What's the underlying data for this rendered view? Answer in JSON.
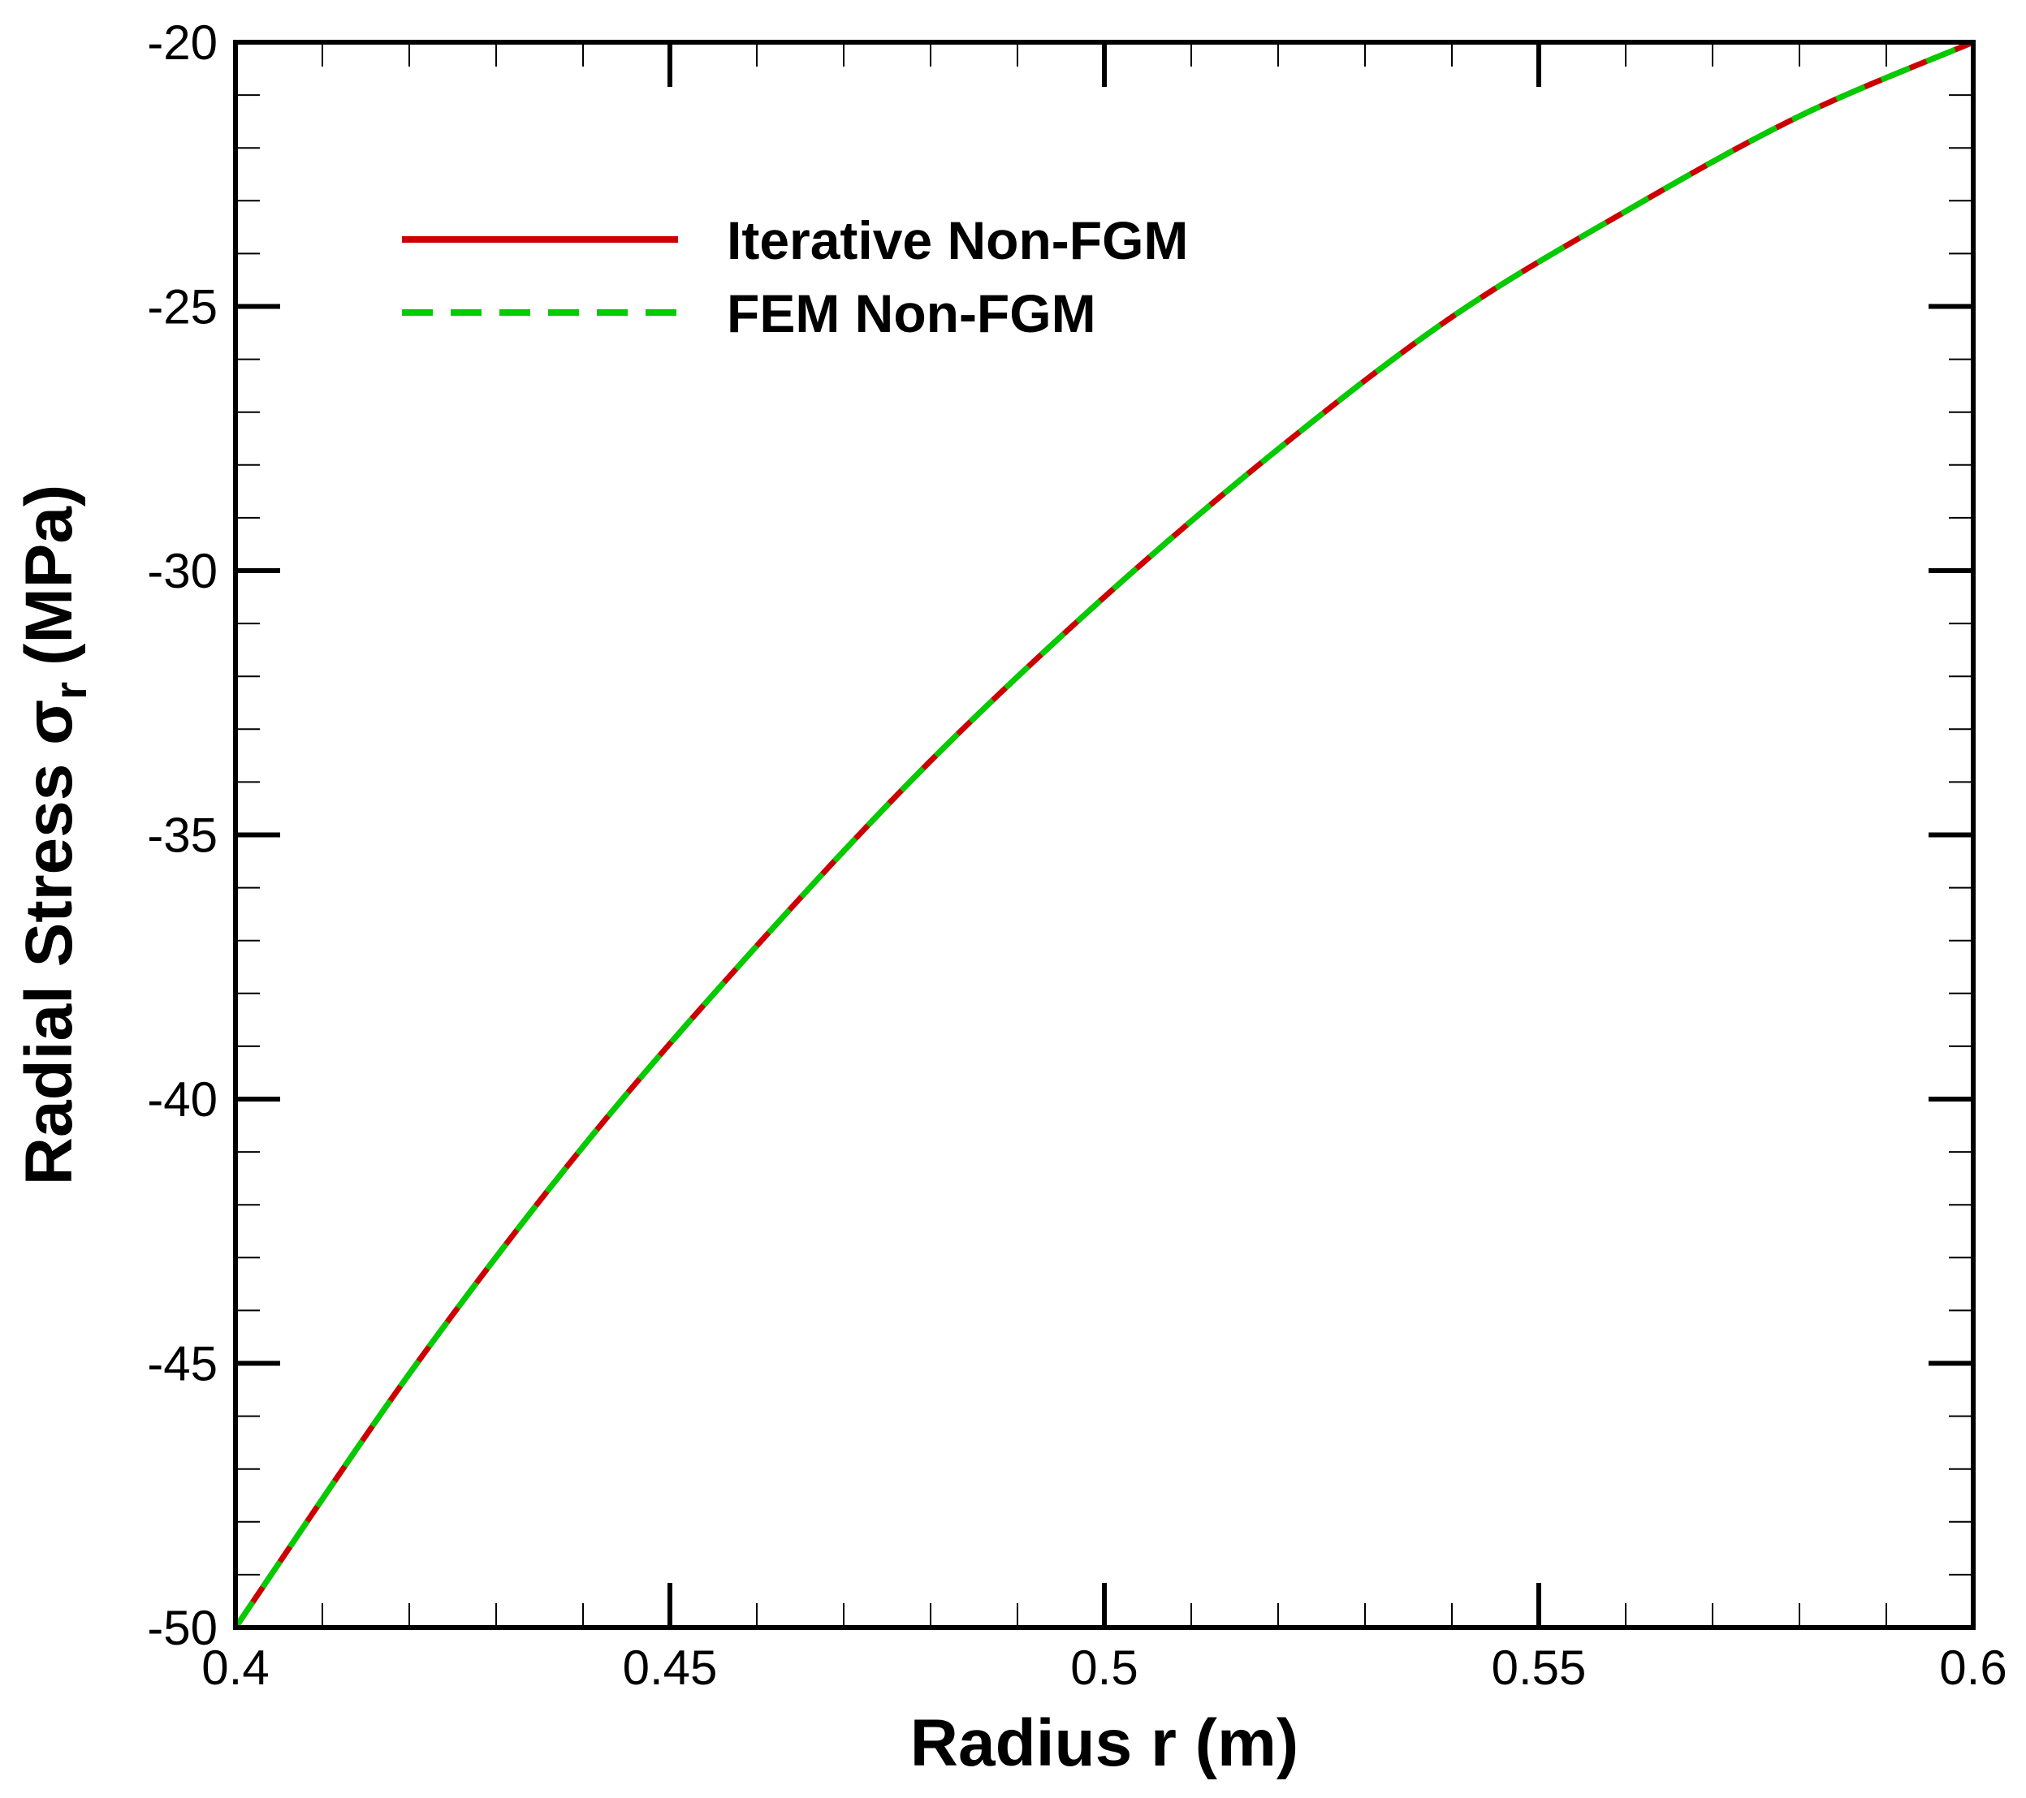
{
  "chart_data": {
    "type": "line",
    "xlabel": "Radius r (m)",
    "ylabel_main": "Radial Stress σ",
    "ylabel_sub": "r",
    "ylabel_unit": "(MPa)",
    "xlim": [
      0.4,
      0.6
    ],
    "ylim": [
      -50,
      -20
    ],
    "xticks": [
      0.4,
      0.45,
      0.5,
      0.55,
      0.6
    ],
    "xtick_labels": [
      "0.4",
      "0.45",
      "0.5",
      "0.55",
      "0.6"
    ],
    "yticks": [
      -50,
      -45,
      -40,
      -35,
      -30,
      -25,
      -20
    ],
    "ytick_labels": [
      "-50",
      "-45",
      "-40",
      "-35",
      "-30",
      "-25",
      "-20"
    ],
    "x_minor_step": 0.01,
    "y_minor_step": 1,
    "grid": false,
    "legend_position": "top-left",
    "x": [
      0.4,
      0.42,
      0.44,
      0.46,
      0.48,
      0.5,
      0.52,
      0.54,
      0.56,
      0.58,
      0.6
    ],
    "series": [
      {
        "name": "Iterative Non-FGM",
        "color": "#cc0000",
        "style": "solid",
        "values": [
          -50.0,
          -45.2,
          -40.9,
          -37.1,
          -33.6,
          -30.5,
          -27.7,
          -25.2,
          -23.2,
          -21.4,
          -20.0
        ]
      },
      {
        "name": "FEM Non-FGM",
        "color": "#00cc00",
        "style": "dashed",
        "values": [
          -50.0,
          -45.2,
          -40.9,
          -37.1,
          -33.6,
          -30.5,
          -27.7,
          -25.2,
          -23.2,
          -21.4,
          -20.0
        ]
      }
    ]
  }
}
